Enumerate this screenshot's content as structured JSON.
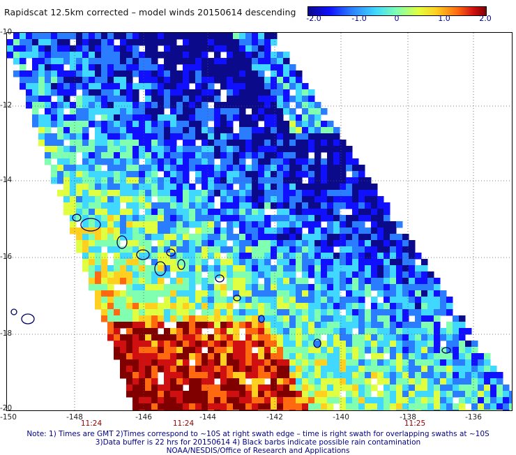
{
  "title": "Rapidscat 12.5km corrected – model winds 20150614 descending",
  "colorbar": {
    "ticks": [
      "-2.0",
      "-1.0",
      "0",
      "1.0",
      "2.0"
    ],
    "colors": [
      "#0a0a8a",
      "#1010ff",
      "#2a7dff",
      "#40d8ff",
      "#80ffb0",
      "#e0ff40",
      "#ffd020",
      "#ff6a10",
      "#d01010",
      "#800000"
    ]
  },
  "lat_labels": [
    "-10",
    "-12",
    "-14",
    "-16",
    "-18",
    "-20"
  ],
  "lon_labels": [
    "-150",
    "-148",
    "-146",
    "-144",
    "-142",
    "-140",
    "-138",
    "-136"
  ],
  "time_labels": [
    "11:24",
    "11:24",
    "11:25"
  ],
  "notes": [
    "Note: 1) Times are GMT 2)Times correspond to ~10S at right swath edge – time is right swath for overlapping swaths at ~10S",
    "3)Data buffer is 22 hrs for 20150614 4) Black barbs indicate possible rain contamination",
    "NOAA/NESDIS/Office of Research and Applications"
  ]
}
